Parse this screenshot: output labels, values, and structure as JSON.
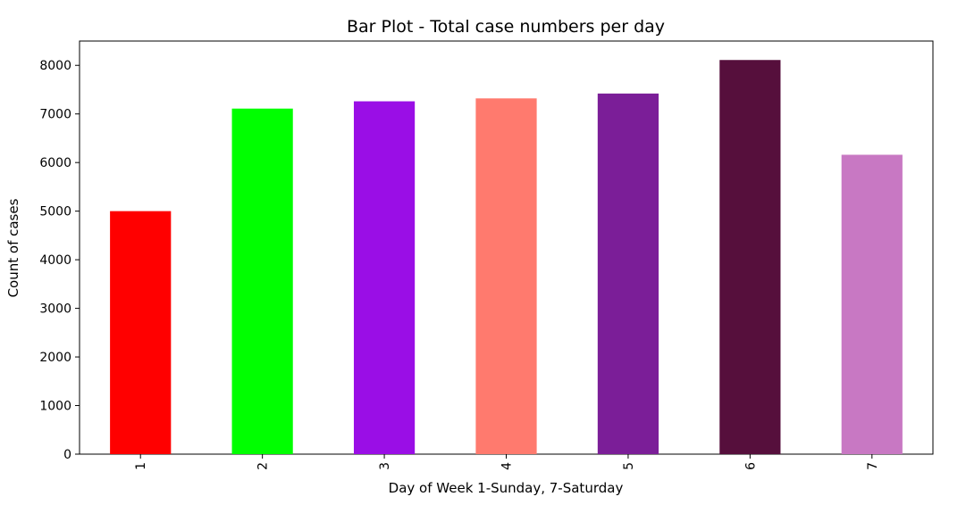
{
  "chart_data": {
    "type": "bar",
    "title": "Bar Plot - Total case numbers per day",
    "xlabel": "Day of Week 1-Sunday, 7-Saturday",
    "ylabel": "Count of cases",
    "categories": [
      "1",
      "2",
      "3",
      "4",
      "5",
      "6",
      "7"
    ],
    "values": [
      5000,
      7110,
      7260,
      7320,
      7420,
      8110,
      6160
    ],
    "colors": [
      "#ff0000",
      "#00ff00",
      "#9a0ee6",
      "#ff7a6e",
      "#7b1e98",
      "#560f3c",
      "#c878c3"
    ],
    "ylim": [
      0,
      8500
    ],
    "yticks": [
      0,
      1000,
      2000,
      3000,
      4000,
      5000,
      6000,
      7000,
      8000
    ],
    "ytick_labels": [
      "0",
      "1000",
      "2000",
      "3000",
      "4000",
      "5000",
      "6000",
      "7000",
      "8000"
    ],
    "grid": false,
    "legend": false
  }
}
